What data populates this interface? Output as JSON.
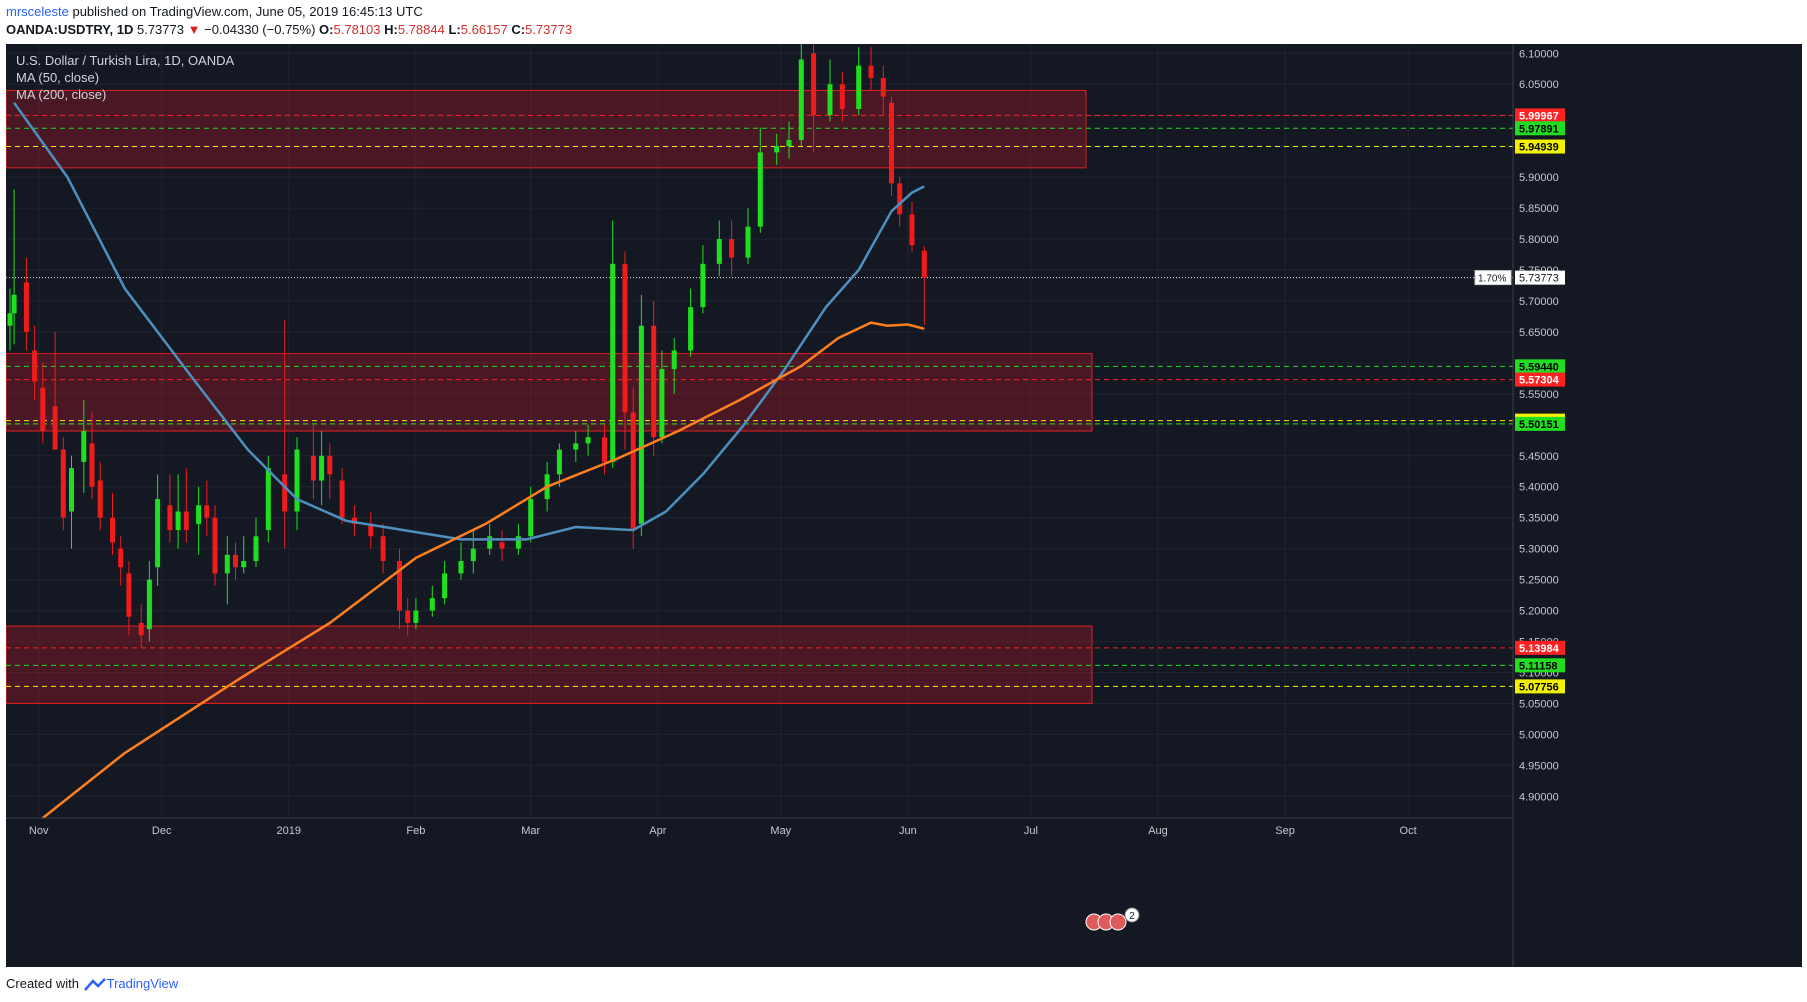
{
  "header": {
    "author": "mrsceleste",
    "published": " published on TradingView.com, June 05, 2019 16:45:13 UTC",
    "symbol": "OANDA:USDTRY, 1D",
    "last": "5.73773",
    "change_arrow": "▼",
    "change": "−0.04330 (−0.75%)",
    "o_label": "O:",
    "o_value": "5.78103",
    "h_label": "H:",
    "h_value": "5.78844",
    "l_label": "L:",
    "l_value": "5.66157",
    "c_label": "C:",
    "c_value": "5.73773"
  },
  "legend": {
    "title": "U.S. Dollar / Turkish Lira, 1D, OANDA",
    "ma50": "MA (50, close)",
    "ma200": "MA (200, close)"
  },
  "footer": {
    "created": "Created with",
    "brand": "TradingView"
  },
  "events_badge": "2",
  "chart_data": {
    "type": "candlestick",
    "y_axis": {
      "range": [
        4.865,
        6.115
      ],
      "ticks": [
        "6.10000",
        "6.05000",
        "6.00000",
        "5.95000",
        "5.90000",
        "5.85000",
        "5.80000",
        "5.75000",
        "5.70000",
        "5.65000",
        "5.60000",
        "5.55000",
        "5.50000",
        "5.45000",
        "5.40000",
        "5.35000",
        "5.30000",
        "5.25000",
        "5.20000",
        "5.15000",
        "5.10000",
        "5.05000",
        "5.00000",
        "4.95000",
        "4.90000"
      ],
      "tick_values": [
        6.1,
        6.05,
        6.0,
        5.95,
        5.9,
        5.85,
        5.8,
        5.75,
        5.7,
        5.65,
        5.6,
        5.55,
        5.5,
        5.45,
        5.4,
        5.35,
        5.3,
        5.25,
        5.2,
        5.15,
        5.1,
        5.05,
        5.0,
        4.95,
        4.9
      ]
    },
    "x_axis": {
      "labels": [
        "Nov",
        "Dec",
        "2019",
        "Feb",
        "Mar",
        "Apr",
        "May",
        "Jun",
        "Jul",
        "Aug",
        "Sep",
        "Oct"
      ],
      "dates": [
        "2018-11-01",
        "2018-12-01",
        "2019-01-01",
        "2019-02-01",
        "2019-03-01",
        "2019-04-01",
        "2019-05-01",
        "2019-06-01",
        "2019-07-01",
        "2019-08-01",
        "2019-09-01",
        "2019-10-01"
      ]
    },
    "last_price": {
      "value": 5.73773,
      "label": "5.73773",
      "pct": "1.70%"
    },
    "zones": [
      {
        "from": 5.915,
        "to": 6.04
      },
      {
        "from": 5.49,
        "to": 5.615
      },
      {
        "from": 5.05,
        "to": 5.175
      }
    ],
    "levels": [
      {
        "value": 5.99967,
        "label": "5.99967",
        "color": "#ff2222"
      },
      {
        "value": 5.97891,
        "label": "5.97891",
        "color": "#22dd22"
      },
      {
        "value": 5.94939,
        "label": "5.94939",
        "color": "#f2f200"
      },
      {
        "value": 5.5944,
        "label": "5.59440",
        "color": "#22dd22"
      },
      {
        "value": 5.57304,
        "label": "5.57304",
        "color": "#ff2222"
      },
      {
        "value": 5.50677,
        "label": "5.50677",
        "color": "#f2f200"
      },
      {
        "value": 5.50151,
        "label": "5.50151",
        "color": "#22dd22"
      },
      {
        "value": 5.13984,
        "label": "5.13984",
        "color": "#ff2222"
      },
      {
        "value": 5.11158,
        "label": "5.11158",
        "color": "#22dd22"
      },
      {
        "value": 5.07756,
        "label": "5.07756",
        "color": "#f2f200"
      }
    ],
    "ma50": {
      "name": "MA (50, close)",
      "color": "#4f8fbf",
      "points": [
        [
          "2018-10-26",
          6.02
        ],
        [
          "2018-11-08",
          5.9
        ],
        [
          "2018-11-22",
          5.72
        ],
        [
          "2018-12-08",
          5.58
        ],
        [
          "2018-12-22",
          5.46
        ],
        [
          "2019-01-03",
          5.38
        ],
        [
          "2019-01-15",
          5.345
        ],
        [
          "2019-01-29",
          5.33
        ],
        [
          "2019-02-12",
          5.315
        ],
        [
          "2019-02-28",
          5.315
        ],
        [
          "2019-03-12",
          5.335
        ],
        [
          "2019-03-26",
          5.33
        ],
        [
          "2019-04-03",
          5.36
        ],
        [
          "2019-04-12",
          5.42
        ],
        [
          "2019-04-22",
          5.5
        ],
        [
          "2019-05-02",
          5.59
        ],
        [
          "2019-05-12",
          5.69
        ],
        [
          "2019-05-20",
          5.75
        ],
        [
          "2019-05-28",
          5.845
        ],
        [
          "2019-06-02",
          5.875
        ],
        [
          "2019-06-05",
          5.885
        ]
      ]
    },
    "ma200": {
      "name": "MA (200, close)",
      "color": "#ff7f1f",
      "points": [
        [
          "2018-11-02",
          4.865
        ],
        [
          "2018-11-22",
          4.97
        ],
        [
          "2018-12-20",
          5.09
        ],
        [
          "2019-01-11",
          5.18
        ],
        [
          "2019-02-01",
          5.285
        ],
        [
          "2019-02-18",
          5.34
        ],
        [
          "2019-03-05",
          5.4
        ],
        [
          "2019-03-22",
          5.445
        ],
        [
          "2019-04-06",
          5.49
        ],
        [
          "2019-04-21",
          5.54
        ],
        [
          "2019-05-06",
          5.595
        ],
        [
          "2019-05-15",
          5.64
        ],
        [
          "2019-05-23",
          5.665
        ],
        [
          "2019-05-27",
          5.66
        ],
        [
          "2019-06-01",
          5.662
        ],
        [
          "2019-06-05",
          5.655
        ]
      ]
    },
    "candles": [
      {
        "date": "2018-10-25",
        "open": 5.66,
        "high": 5.72,
        "low": 5.62,
        "close": 5.68
      },
      {
        "date": "2018-10-26",
        "open": 5.68,
        "high": 5.88,
        "low": 5.63,
        "close": 5.71
      },
      {
        "date": "2018-10-29",
        "open": 5.73,
        "high": 5.77,
        "low": 5.62,
        "close": 5.65
      },
      {
        "date": "2018-10-31",
        "open": 5.62,
        "high": 5.66,
        "low": 5.54,
        "close": 5.57
      },
      {
        "date": "2018-11-02",
        "open": 5.56,
        "high": 5.6,
        "low": 5.47,
        "close": 5.49
      },
      {
        "date": "2018-11-05",
        "open": 5.53,
        "high": 5.65,
        "low": 5.46,
        "close": 5.46
      },
      {
        "date": "2018-11-07",
        "open": 5.46,
        "high": 5.48,
        "low": 5.33,
        "close": 5.35
      },
      {
        "date": "2018-11-09",
        "open": 5.36,
        "high": 5.45,
        "low": 5.3,
        "close": 5.43
      },
      {
        "date": "2018-11-12",
        "open": 5.44,
        "high": 5.54,
        "low": 5.39,
        "close": 5.49
      },
      {
        "date": "2018-11-14",
        "open": 5.47,
        "high": 5.52,
        "low": 5.38,
        "close": 5.4
      },
      {
        "date": "2018-11-16",
        "open": 5.41,
        "high": 5.44,
        "low": 5.33,
        "close": 5.35
      },
      {
        "date": "2018-11-19",
        "open": 5.35,
        "high": 5.39,
        "low": 5.29,
        "close": 5.31
      },
      {
        "date": "2018-11-21",
        "open": 5.3,
        "high": 5.32,
        "low": 5.24,
        "close": 5.27
      },
      {
        "date": "2018-11-23",
        "open": 5.26,
        "high": 5.28,
        "low": 5.16,
        "close": 5.19
      },
      {
        "date": "2018-11-26",
        "open": 5.18,
        "high": 5.21,
        "low": 5.14,
        "close": 5.16
      },
      {
        "date": "2018-11-28",
        "open": 5.17,
        "high": 5.28,
        "low": 5.15,
        "close": 5.25
      },
      {
        "date": "2018-11-30",
        "open": 5.27,
        "high": 5.42,
        "low": 5.24,
        "close": 5.38
      },
      {
        "date": "2018-12-03",
        "open": 5.37,
        "high": 5.42,
        "low": 5.31,
        "close": 5.33
      },
      {
        "date": "2018-12-05",
        "open": 5.33,
        "high": 5.42,
        "low": 5.3,
        "close": 5.36
      },
      {
        "date": "2018-12-07",
        "open": 5.36,
        "high": 5.43,
        "low": 5.31,
        "close": 5.33
      },
      {
        "date": "2018-12-10",
        "open": 5.34,
        "high": 5.4,
        "low": 5.29,
        "close": 5.37
      },
      {
        "date": "2018-12-12",
        "open": 5.37,
        "high": 5.41,
        "low": 5.32,
        "close": 5.35
      },
      {
        "date": "2018-12-14",
        "open": 5.35,
        "high": 5.37,
        "low": 5.24,
        "close": 5.26
      },
      {
        "date": "2018-12-17",
        "open": 5.26,
        "high": 5.32,
        "low": 5.21,
        "close": 5.29
      },
      {
        "date": "2018-12-19",
        "open": 5.29,
        "high": 5.31,
        "low": 5.25,
        "close": 5.27
      },
      {
        "date": "2018-12-21",
        "open": 5.27,
        "high": 5.32,
        "low": 5.26,
        "close": 5.28
      },
      {
        "date": "2018-12-24",
        "open": 5.28,
        "high": 5.35,
        "low": 5.27,
        "close": 5.32
      },
      {
        "date": "2018-12-27",
        "open": 5.33,
        "high": 5.45,
        "low": 5.31,
        "close": 5.43
      },
      {
        "date": "2018-12-31",
        "open": 5.42,
        "high": 5.67,
        "low": 5.3,
        "close": 5.36
      },
      {
        "date": "2019-01-03",
        "open": 5.36,
        "high": 5.48,
        "low": 5.33,
        "close": 5.46
      },
      {
        "date": "2019-01-07",
        "open": 5.45,
        "high": 5.5,
        "low": 5.38,
        "close": 5.41
      },
      {
        "date": "2019-01-09",
        "open": 5.41,
        "high": 5.49,
        "low": 5.37,
        "close": 5.45
      },
      {
        "date": "2019-01-11",
        "open": 5.45,
        "high": 5.47,
        "low": 5.38,
        "close": 5.42
      },
      {
        "date": "2019-01-14",
        "open": 5.41,
        "high": 5.43,
        "low": 5.34,
        "close": 5.35
      },
      {
        "date": "2019-01-17",
        "open": 5.35,
        "high": 5.37,
        "low": 5.32,
        "close": 5.34
      },
      {
        "date": "2019-01-21",
        "open": 5.34,
        "high": 5.36,
        "low": 5.3,
        "close": 5.32
      },
      {
        "date": "2019-01-24",
        "open": 5.32,
        "high": 5.34,
        "low": 5.26,
        "close": 5.28
      },
      {
        "date": "2019-01-28",
        "open": 5.28,
        "high": 5.3,
        "low": 5.17,
        "close": 5.2
      },
      {
        "date": "2019-01-30",
        "open": 5.2,
        "high": 5.22,
        "low": 5.16,
        "close": 5.18
      },
      {
        "date": "2019-02-01",
        "open": 5.18,
        "high": 5.22,
        "low": 5.17,
        "close": 5.2
      },
      {
        "date": "2019-02-05",
        "open": 5.2,
        "high": 5.24,
        "low": 5.19,
        "close": 5.22
      },
      {
        "date": "2019-02-08",
        "open": 5.22,
        "high": 5.28,
        "low": 5.21,
        "close": 5.26
      },
      {
        "date": "2019-02-12",
        "open": 5.26,
        "high": 5.31,
        "low": 5.25,
        "close": 5.28
      },
      {
        "date": "2019-02-15",
        "open": 5.28,
        "high": 5.33,
        "low": 5.26,
        "close": 5.3
      },
      {
        "date": "2019-02-19",
        "open": 5.3,
        "high": 5.34,
        "low": 5.29,
        "close": 5.32
      },
      {
        "date": "2019-02-22",
        "open": 5.31,
        "high": 5.33,
        "low": 5.28,
        "close": 5.3
      },
      {
        "date": "2019-02-26",
        "open": 5.3,
        "high": 5.34,
        "low": 5.29,
        "close": 5.32
      },
      {
        "date": "2019-03-01",
        "open": 5.32,
        "high": 5.4,
        "low": 5.31,
        "close": 5.38
      },
      {
        "date": "2019-03-05",
        "open": 5.38,
        "high": 5.44,
        "low": 5.36,
        "close": 5.42
      },
      {
        "date": "2019-03-08",
        "open": 5.42,
        "high": 5.47,
        "low": 5.4,
        "close": 5.46
      },
      {
        "date": "2019-03-12",
        "open": 5.46,
        "high": 5.49,
        "low": 5.44,
        "close": 5.47
      },
      {
        "date": "2019-03-15",
        "open": 5.47,
        "high": 5.5,
        "low": 5.45,
        "close": 5.48
      },
      {
        "date": "2019-03-19",
        "open": 5.48,
        "high": 5.5,
        "low": 5.42,
        "close": 5.44
      },
      {
        "date": "2019-03-21",
        "open": 5.44,
        "high": 5.83,
        "low": 5.43,
        "close": 5.76
      },
      {
        "date": "2019-03-24",
        "open": 5.76,
        "high": 5.78,
        "low": 5.46,
        "close": 5.52
      },
      {
        "date": "2019-03-26",
        "open": 5.52,
        "high": 5.56,
        "low": 5.3,
        "close": 5.33
      },
      {
        "date": "2019-03-28",
        "open": 5.34,
        "high": 5.71,
        "low": 5.32,
        "close": 5.66
      },
      {
        "date": "2019-03-31",
        "open": 5.66,
        "high": 5.7,
        "low": 5.45,
        "close": 5.48
      },
      {
        "date": "2019-04-02",
        "open": 5.48,
        "high": 5.62,
        "low": 5.47,
        "close": 5.59
      },
      {
        "date": "2019-04-05",
        "open": 5.59,
        "high": 5.64,
        "low": 5.55,
        "close": 5.62
      },
      {
        "date": "2019-04-09",
        "open": 5.62,
        "high": 5.72,
        "low": 5.61,
        "close": 5.69
      },
      {
        "date": "2019-04-12",
        "open": 5.69,
        "high": 5.79,
        "low": 5.68,
        "close": 5.76
      },
      {
        "date": "2019-04-16",
        "open": 5.76,
        "high": 5.83,
        "low": 5.74,
        "close": 5.8
      },
      {
        "date": "2019-04-19",
        "open": 5.8,
        "high": 5.83,
        "low": 5.74,
        "close": 5.77
      },
      {
        "date": "2019-04-23",
        "open": 5.77,
        "high": 5.85,
        "low": 5.76,
        "close": 5.82
      },
      {
        "date": "2019-04-26",
        "open": 5.82,
        "high": 5.98,
        "low": 5.81,
        "close": 5.94
      },
      {
        "date": "2019-04-30",
        "open": 5.94,
        "high": 5.97,
        "low": 5.92,
        "close": 5.95
      },
      {
        "date": "2019-05-03",
        "open": 5.95,
        "high": 5.99,
        "low": 5.93,
        "close": 5.96
      },
      {
        "date": "2019-05-06",
        "open": 5.96,
        "high": 6.12,
        "low": 5.95,
        "close": 6.09
      },
      {
        "date": "2019-05-09",
        "open": 6.1,
        "high": 6.12,
        "low": 5.94,
        "close": 6.0
      },
      {
        "date": "2019-05-13",
        "open": 6.0,
        "high": 6.09,
        "low": 5.99,
        "close": 6.05
      },
      {
        "date": "2019-05-16",
        "open": 6.05,
        "high": 6.07,
        "low": 5.99,
        "close": 6.01
      },
      {
        "date": "2019-05-20",
        "open": 6.01,
        "high": 6.11,
        "low": 6.0,
        "close": 6.08
      },
      {
        "date": "2019-05-23",
        "open": 6.08,
        "high": 6.11,
        "low": 6.04,
        "close": 6.06
      },
      {
        "date": "2019-05-26",
        "open": 6.06,
        "high": 6.08,
        "low": 6.0,
        "close": 6.03
      },
      {
        "date": "2019-05-28",
        "open": 6.02,
        "high": 6.03,
        "low": 5.87,
        "close": 5.89
      },
      {
        "date": "2019-05-30",
        "open": 5.89,
        "high": 5.9,
        "low": 5.82,
        "close": 5.84
      },
      {
        "date": "2019-06-02",
        "open": 5.84,
        "high": 5.86,
        "low": 5.78,
        "close": 5.79
      },
      {
        "date": "2019-06-05",
        "open": 5.78103,
        "high": 5.78844,
        "low": 5.66157,
        "close": 5.73773
      }
    ]
  }
}
